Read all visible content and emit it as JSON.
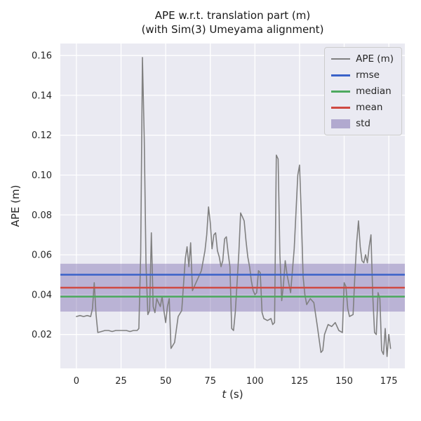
{
  "figure": {
    "title_line1": "APE w.r.t. translation part (m)",
    "title_line2": "(with Sim(3) Umeyama alignment)",
    "xlabel_italic": "t",
    "xlabel_rest": " (s)",
    "ylabel": "APE (m)"
  },
  "theme": {
    "axes_bg": "#eaeaf2",
    "grid_color": "#ffffff",
    "text_color": "#262626",
    "band_opacity": 0.45
  },
  "chart_data": {
    "type": "line",
    "title": "APE w.r.t. translation part (m) (with Sim(3) Umeyama alignment)",
    "xlabel": "t (s)",
    "ylabel": "APE (m)",
    "xlim": [
      -9,
      184
    ],
    "ylim": [
      0.003,
      0.166
    ],
    "xticks": [
      "0",
      "25",
      "50",
      "75",
      "100",
      "125",
      "150",
      "175"
    ],
    "yticks": [
      "0.02",
      "0.04",
      "0.06",
      "0.08",
      "0.10",
      "0.12",
      "0.14",
      "0.16"
    ],
    "grid": true,
    "legend_position": "upper right",
    "legend": [
      {
        "label": "APE (m)",
        "swatch": "line",
        "color": "#808080",
        "lw": 2
      },
      {
        "label": "rmse",
        "swatch": "line",
        "color": "#3a62c9",
        "lw": 3
      },
      {
        "label": "median",
        "swatch": "line",
        "color": "#4da95f",
        "lw": 3
      },
      {
        "label": "mean",
        "swatch": "line",
        "color": "#cf4a42",
        "lw": 3
      },
      {
        "label": "std",
        "swatch": "patch",
        "color": "#8172b2",
        "lw": 0
      }
    ],
    "stats": {
      "rmse": 0.05,
      "median": 0.039,
      "mean": 0.0435,
      "std": 0.012,
      "std_band": [
        0.0315,
        0.0555
      ]
    },
    "series": [
      {
        "name": "APE (m)",
        "color": "#808080",
        "points": [
          [
            0,
            0.029
          ],
          [
            2,
            0.0295
          ],
          [
            4,
            0.029
          ],
          [
            6,
            0.0295
          ],
          [
            8,
            0.029
          ],
          [
            9,
            0.033
          ],
          [
            10,
            0.046
          ],
          [
            11,
            0.03
          ],
          [
            12,
            0.021
          ],
          [
            14,
            0.0215
          ],
          [
            16,
            0.022
          ],
          [
            18,
            0.022
          ],
          [
            20,
            0.0215
          ],
          [
            22,
            0.022
          ],
          [
            24,
            0.022
          ],
          [
            26,
            0.022
          ],
          [
            28,
            0.022
          ],
          [
            30,
            0.0215
          ],
          [
            32,
            0.022
          ],
          [
            34,
            0.022
          ],
          [
            35,
            0.023
          ],
          [
            36,
            0.06
          ],
          [
            37,
            0.159
          ],
          [
            38,
            0.118
          ],
          [
            39,
            0.055
          ],
          [
            40,
            0.03
          ],
          [
            41,
            0.032
          ],
          [
            42,
            0.071
          ],
          [
            43,
            0.034
          ],
          [
            44,
            0.031
          ],
          [
            45,
            0.038
          ],
          [
            46,
            0.036
          ],
          [
            47,
            0.034
          ],
          [
            48,
            0.039
          ],
          [
            49,
            0.032
          ],
          [
            50,
            0.026
          ],
          [
            51,
            0.034
          ],
          [
            52,
            0.038
          ],
          [
            53,
            0.013
          ],
          [
            55,
            0.016
          ],
          [
            57,
            0.029
          ],
          [
            59,
            0.032
          ],
          [
            61,
            0.058
          ],
          [
            62,
            0.064
          ],
          [
            63,
            0.054
          ],
          [
            64,
            0.066
          ],
          [
            65,
            0.042
          ],
          [
            66,
            0.044
          ],
          [
            68,
            0.048
          ],
          [
            70,
            0.052
          ],
          [
            72,
            0.062
          ],
          [
            73,
            0.07
          ],
          [
            74,
            0.084
          ],
          [
            75,
            0.076
          ],
          [
            76,
            0.063
          ],
          [
            77,
            0.07
          ],
          [
            78,
            0.071
          ],
          [
            79,
            0.062
          ],
          [
            80,
            0.059
          ],
          [
            81,
            0.054
          ],
          [
            82,
            0.057
          ],
          [
            83,
            0.068
          ],
          [
            84,
            0.069
          ],
          [
            85,
            0.061
          ],
          [
            86,
            0.054
          ],
          [
            87,
            0.023
          ],
          [
            88,
            0.022
          ],
          [
            89,
            0.031
          ],
          [
            90,
            0.046
          ],
          [
            91,
            0.061
          ],
          [
            92,
            0.081
          ],
          [
            93,
            0.079
          ],
          [
            94,
            0.077
          ],
          [
            95,
            0.067
          ],
          [
            96,
            0.059
          ],
          [
            97,
            0.054
          ],
          [
            98,
            0.047
          ],
          [
            99,
            0.042
          ],
          [
            100,
            0.04
          ],
          [
            101,
            0.041
          ],
          [
            102,
            0.052
          ],
          [
            103,
            0.051
          ],
          [
            104,
            0.031
          ],
          [
            105,
            0.028
          ],
          [
            107,
            0.027
          ],
          [
            109,
            0.028
          ],
          [
            110,
            0.025
          ],
          [
            111,
            0.026
          ],
          [
            112,
            0.11
          ],
          [
            113,
            0.108
          ],
          [
            114,
            0.06
          ],
          [
            115,
            0.037
          ],
          [
            116,
            0.045
          ],
          [
            117,
            0.057
          ],
          [
            118,
            0.05
          ],
          [
            120,
            0.041
          ],
          [
            122,
            0.063
          ],
          [
            124,
            0.1
          ],
          [
            125,
            0.105
          ],
          [
            126,
            0.08
          ],
          [
            127,
            0.049
          ],
          [
            128,
            0.04
          ],
          [
            129,
            0.035
          ],
          [
            131,
            0.038
          ],
          [
            133,
            0.036
          ],
          [
            135,
            0.024
          ],
          [
            137,
            0.011
          ],
          [
            138,
            0.012
          ],
          [
            139,
            0.02
          ],
          [
            141,
            0.025
          ],
          [
            143,
            0.024
          ],
          [
            145,
            0.026
          ],
          [
            147,
            0.022
          ],
          [
            149,
            0.021
          ],
          [
            150,
            0.046
          ],
          [
            151,
            0.044
          ],
          [
            152,
            0.033
          ],
          [
            153,
            0.029
          ],
          [
            155,
            0.03
          ],
          [
            156,
            0.05
          ],
          [
            157,
            0.066
          ],
          [
            158,
            0.077
          ],
          [
            159,
            0.064
          ],
          [
            160,
            0.057
          ],
          [
            161,
            0.056
          ],
          [
            162,
            0.06
          ],
          [
            163,
            0.056
          ],
          [
            164,
            0.064
          ],
          [
            165,
            0.07
          ],
          [
            166,
            0.04
          ],
          [
            167,
            0.021
          ],
          [
            168,
            0.02
          ],
          [
            169,
            0.041
          ],
          [
            170,
            0.038
          ],
          [
            171,
            0.012
          ],
          [
            172,
            0.01
          ],
          [
            173,
            0.023
          ],
          [
            174,
            0.009
          ],
          [
            175,
            0.02
          ],
          [
            176,
            0.013
          ]
        ]
      }
    ]
  }
}
